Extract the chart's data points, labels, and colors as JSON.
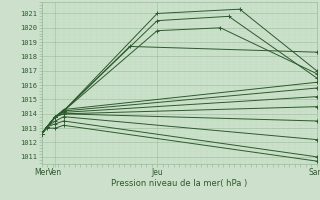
{
  "xlabel": "Pression niveau de la mer( hPa )",
  "xtick_labels": [
    "Mer",
    "Ven",
    "Jeu",
    "Sam"
  ],
  "xtick_positions": [
    0.0,
    0.05,
    0.42,
    1.0
  ],
  "ytick_labels": [
    "1011",
    "1012",
    "1013",
    "1014",
    "1015",
    "1016",
    "1017",
    "1018",
    "1019",
    "1020",
    "1021"
  ],
  "ymin": 1010.5,
  "ymax": 1021.8,
  "xmin": 0.0,
  "xmax": 1.0,
  "bg_color": "#cce0cc",
  "grid_major_color": "#99bb99",
  "grid_minor_color": "#bbddbb",
  "line_color": "#2d5a2d",
  "lines": [
    {
      "x": [
        0.0,
        0.02,
        0.05,
        0.08,
        0.42,
        0.72,
        1.0
      ],
      "y": [
        1012.6,
        1013.1,
        1013.8,
        1014.2,
        1021.0,
        1021.3,
        1017.0
      ]
    },
    {
      "x": [
        0.0,
        0.02,
        0.05,
        0.08,
        0.42,
        0.68,
        1.0
      ],
      "y": [
        1012.6,
        1013.1,
        1013.8,
        1014.2,
        1020.5,
        1020.8,
        1016.5
      ]
    },
    {
      "x": [
        0.0,
        0.02,
        0.05,
        0.08,
        0.42,
        0.65,
        1.0
      ],
      "y": [
        1012.6,
        1013.1,
        1013.8,
        1014.2,
        1019.8,
        1020.0,
        1016.8
      ]
    },
    {
      "x": [
        0.0,
        0.02,
        0.05,
        0.08,
        0.32,
        1.0
      ],
      "y": [
        1012.6,
        1013.1,
        1013.8,
        1014.2,
        1018.7,
        1018.3
      ]
    },
    {
      "x": [
        0.0,
        0.02,
        0.05,
        0.08,
        1.0
      ],
      "y": [
        1012.6,
        1013.1,
        1013.8,
        1014.3,
        1016.2
      ]
    },
    {
      "x": [
        0.0,
        0.02,
        0.05,
        0.08,
        1.0
      ],
      "y": [
        1012.6,
        1013.1,
        1013.8,
        1014.2,
        1015.8
      ]
    },
    {
      "x": [
        0.0,
        0.02,
        0.05,
        0.08,
        1.0
      ],
      "y": [
        1012.6,
        1013.1,
        1013.8,
        1014.1,
        1015.2
      ]
    },
    {
      "x": [
        0.0,
        0.02,
        0.05,
        0.08,
        1.0
      ],
      "y": [
        1012.6,
        1013.1,
        1013.8,
        1014.0,
        1014.5
      ]
    },
    {
      "x": [
        0.0,
        0.02,
        0.05,
        0.08,
        1.0
      ],
      "y": [
        1012.6,
        1013.1,
        1013.8,
        1014.0,
        1013.5
      ]
    },
    {
      "x": [
        0.0,
        0.02,
        0.05,
        0.08,
        1.0
      ],
      "y": [
        1012.6,
        1013.1,
        1013.5,
        1013.8,
        1012.2
      ]
    },
    {
      "x": [
        0.0,
        0.02,
        0.05,
        0.08,
        1.0
      ],
      "y": [
        1012.6,
        1013.1,
        1013.3,
        1013.5,
        1011.0
      ]
    },
    {
      "x": [
        0.0,
        0.02,
        0.05,
        0.08,
        1.0
      ],
      "y": [
        1012.6,
        1013.0,
        1013.0,
        1013.2,
        1010.7
      ]
    }
  ]
}
